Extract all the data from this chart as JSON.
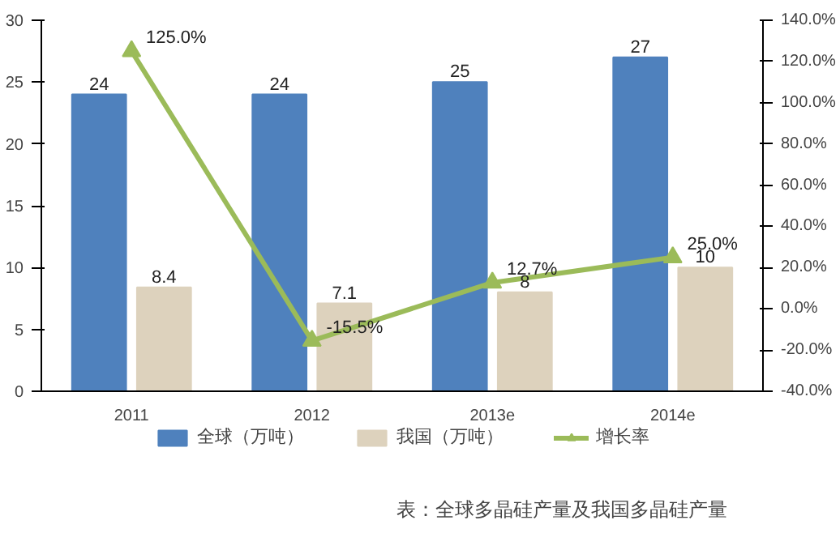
{
  "chart_data": {
    "type": "bar",
    "categories": [
      "2011",
      "2012",
      "2013e",
      "2014e"
    ],
    "series": [
      {
        "name": "全球（万吨）",
        "color": "#4f81bd",
        "values": [
          24,
          24,
          25,
          27
        ]
      },
      {
        "name": "我国（万吨）",
        "color": "#ddd2bd",
        "values": [
          8.4,
          7.1,
          8,
          10
        ]
      },
      {
        "name": "增长率",
        "color": "#9bbb59",
        "type": "line",
        "axis": "y2",
        "marker": "triangle",
        "values": [
          125.0,
          -15.5,
          12.7,
          25.0
        ],
        "value_labels": [
          "125.0%",
          "-15.5%",
          "12.7%",
          "25.0%"
        ]
      }
    ],
    "ylim": [
      0,
      30
    ],
    "yticks": [
      0,
      5,
      10,
      15,
      20,
      25,
      30
    ],
    "y2lim": [
      -40,
      140
    ],
    "y2ticks": [
      {
        "value": -40,
        "label": "-40.0%"
      },
      {
        "value": -20,
        "label": "-20.0%"
      },
      {
        "value": 0,
        "label": "0.0%"
      },
      {
        "value": 20,
        "label": "20.0%"
      },
      {
        "value": 40,
        "label": "40.0%"
      },
      {
        "value": 60,
        "label": "60.0%"
      },
      {
        "value": 80,
        "label": "80.0%"
      },
      {
        "value": 100,
        "label": "100.0%"
      },
      {
        "value": 120,
        "label": "120.0%"
      },
      {
        "value": 140,
        "label": "140.0%"
      }
    ],
    "data_labels": true,
    "grid": false,
    "legend": "bottom",
    "annotations": [
      "表：全球多晶硅产量及我国多晶硅产量"
    ]
  }
}
